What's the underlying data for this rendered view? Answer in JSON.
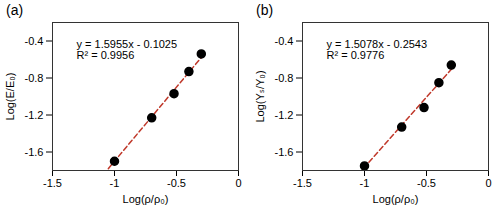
{
  "chart_data": [
    {
      "type": "scatter",
      "title": "(a)",
      "x_label": "Log(ρ/ρ₀)",
      "y_label": "Log(E/E₀)",
      "x": [
        -1.0,
        -0.7,
        -0.52,
        -0.4,
        -0.3
      ],
      "values": [
        -1.7,
        -1.23,
        -0.97,
        -0.73,
        -0.54
      ],
      "color": "#000000",
      "marker": "circle",
      "trendline": {
        "x": [
          -1.05,
          -0.27
        ],
        "values": [
          -1.78,
          -0.53
        ],
        "color": "#c0392b",
        "line_style": "dashed"
      },
      "annotations": [
        "y = 1.5955x - 0.1025",
        "R² = 0.9956"
      ],
      "xlim": [
        -1.5,
        0
      ],
      "xticks": [
        -1.5,
        -1,
        -0.5,
        0
      ],
      "ylim": [
        -1.8,
        -0.2
      ],
      "yticks": [
        -1.6,
        -1.2,
        -0.8,
        -0.4
      ],
      "grid": false
    },
    {
      "type": "scatter",
      "title": "(b)",
      "x_label": "Log(ρ/ρ₀)",
      "y_label": "Log(Yₛ/Y₀)",
      "x": [
        -1.0,
        -0.7,
        -0.52,
        -0.4,
        -0.3
      ],
      "values": [
        -1.75,
        -1.33,
        -1.12,
        -0.85,
        -0.66
      ],
      "color": "#000000",
      "marker": "circle",
      "trendline": {
        "x": [
          -1.05,
          -0.27
        ],
        "values": [
          -1.84,
          -0.66
        ],
        "color": "#c0392b",
        "line_style": "dashed"
      },
      "annotations": [
        "y = 1.5078x - 0.2543",
        "R² = 0.9776"
      ],
      "xlim": [
        -1.5,
        0
      ],
      "xticks": [
        -1.5,
        -1,
        -0.5,
        0
      ],
      "ylim": [
        -1.8,
        -0.2
      ],
      "yticks": [
        -1.6,
        -1.2,
        -0.8,
        -0.4
      ],
      "grid": false
    }
  ]
}
